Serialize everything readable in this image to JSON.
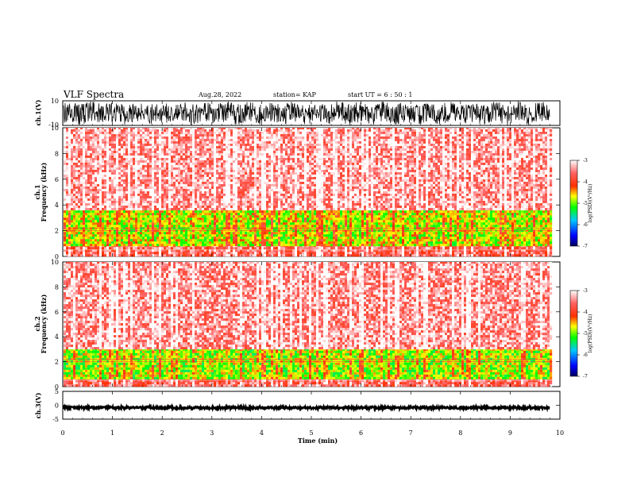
{
  "header": {
    "title": "VLF Spectra",
    "date": "Aug.28, 2022",
    "station": "station= KAP",
    "start_ut": "start  UT =   6  : 50 : 1"
  },
  "chart_data": [
    {
      "type": "line",
      "panel": "ch1-waveform",
      "ylabel": "ch.1(V)",
      "ylim": [
        -10,
        10
      ],
      "yticks": [
        "10",
        "-10"
      ],
      "xlim": [
        0,
        10
      ],
      "note_values": "dense oscillating waveform spanning roughly -9 to 9 V"
    },
    {
      "type": "heatmap",
      "panel": "ch1-spectrogram",
      "ylabel": "ch.1\nFrequency  (kHz)",
      "ylim": [
        0,
        10
      ],
      "yticks": [
        "0",
        "2",
        "4",
        "6",
        "8",
        "10"
      ],
      "xlim": [
        0,
        9.83
      ],
      "colorbar": {
        "label": "log(PSD)(V²/Hz)",
        "range": [
          -7,
          -3
        ],
        "ticks": [
          "-3",
          "-4",
          "-5",
          "-6",
          "-7"
        ],
        "colors": [
          "#000080",
          "#0000ff",
          "#00ffff",
          "#00ff00",
          "#ffff00",
          "#ff0000",
          "#ffffff"
        ]
      },
      "bands": [
        {
          "from_khz": 0.0,
          "to_khz": 0.8,
          "level": -3.7
        },
        {
          "from_khz": 0.8,
          "to_khz": 3.6,
          "level": -4.8
        },
        {
          "from_khz": 3.6,
          "to_khz": 10.0,
          "level": -3.4
        }
      ]
    },
    {
      "type": "heatmap",
      "panel": "ch2-spectrogram",
      "ylabel": "ch.2\nFrequency  (kHz)",
      "ylim": [
        0,
        10
      ],
      "yticks": [
        "0",
        "2",
        "4",
        "6",
        "8",
        "10"
      ],
      "xlim": [
        0,
        9.83
      ],
      "colorbar": {
        "label": "log(PSD)(V²/Hz)",
        "range": [
          -7,
          -3
        ],
        "ticks": [
          "-3",
          "-4",
          "-5",
          "-6",
          "-7"
        ],
        "colors": [
          "#000080",
          "#0000ff",
          "#00ffff",
          "#00ff00",
          "#ffff00",
          "#ff0000",
          "#ffffff"
        ]
      },
      "bands": [
        {
          "from_khz": 0.0,
          "to_khz": 0.6,
          "level": -3.7
        },
        {
          "from_khz": 0.6,
          "to_khz": 3.0,
          "level": -4.9
        },
        {
          "from_khz": 3.0,
          "to_khz": 10.0,
          "level": -3.4
        }
      ]
    },
    {
      "type": "line",
      "panel": "ch3-waveform",
      "ylabel": "ch.3(V)",
      "ylim": [
        -5,
        5
      ],
      "yticks": [
        "5",
        "0",
        "-5"
      ],
      "xlim": [
        0,
        10
      ],
      "note_values": "near-flat thick trace around -1 V"
    }
  ],
  "xaxis": {
    "label": "Time  (min)",
    "ticks": [
      "0",
      "1",
      "2",
      "3",
      "4",
      "5",
      "6",
      "7",
      "8",
      "9",
      "10"
    ]
  }
}
